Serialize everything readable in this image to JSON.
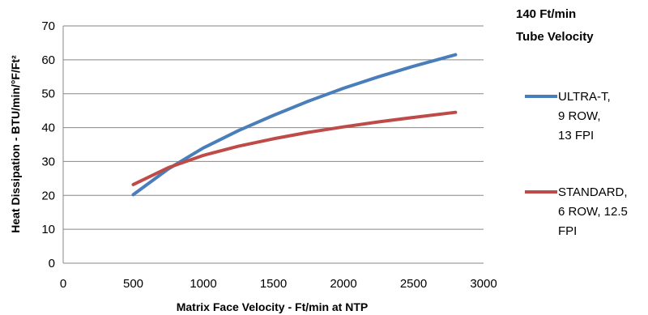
{
  "chart_data": {
    "type": "line",
    "title": "",
    "xlabel": "Matrix Face Velocity - Ft/min at NTP",
    "ylabel": "Heat Dissipation - BTU/min/°F/Ft²",
    "xlim": [
      0,
      3000
    ],
    "ylim": [
      0,
      70
    ],
    "xticks": [
      0,
      500,
      1000,
      1500,
      2000,
      2500,
      3000
    ],
    "yticks": [
      0,
      10,
      20,
      30,
      40,
      50,
      60,
      70
    ],
    "grid": "horizontal",
    "legend_position": "right",
    "legend_title": [
      "140 Ft/min",
      "Tube Velocity"
    ],
    "series": [
      {
        "name": "ULTRA-T, 9 ROW, 13 FPI",
        "legend_lines": [
          "ULTRA-T,",
          "9 ROW,",
          "13 FPI"
        ],
        "color": "#4a7ebb",
        "x": [
          500,
          750,
          1000,
          1250,
          1500,
          1750,
          2000,
          2250,
          2500,
          2800
        ],
        "y": [
          20.2,
          27.8,
          34.0,
          39.1,
          43.6,
          47.8,
          51.6,
          55.0,
          58.1,
          61.5
        ]
      },
      {
        "name": "STANDARD, 6 ROW, 12.5 FPI",
        "legend_lines": [
          "STANDARD,",
          "6 ROW, 12.5",
          "FPI"
        ],
        "color": "#be4b48",
        "x": [
          500,
          750,
          1000,
          1250,
          1500,
          1750,
          2000,
          2250,
          2500,
          2800
        ],
        "y": [
          23.2,
          28.2,
          31.8,
          34.5,
          36.7,
          38.6,
          40.2,
          41.7,
          43.0,
          44.5
        ]
      }
    ]
  }
}
